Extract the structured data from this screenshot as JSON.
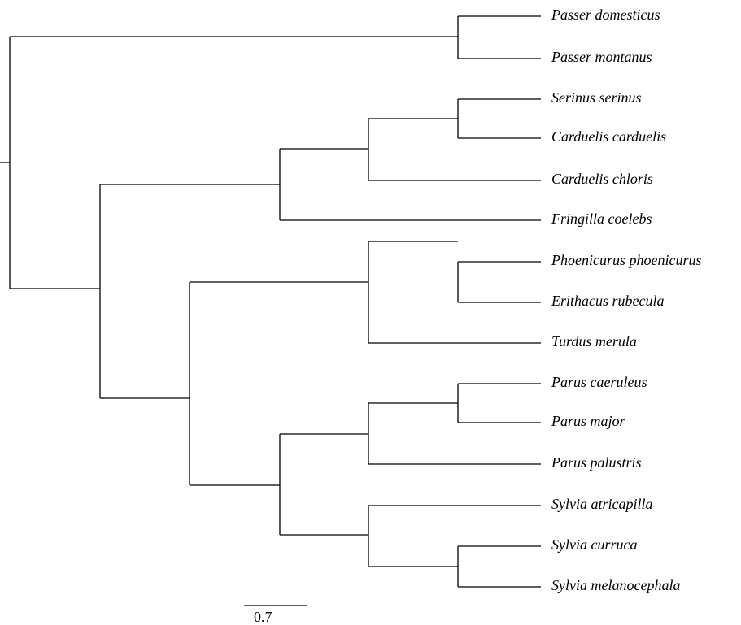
{
  "tree": {
    "leaves": [
      "Passer domesticus",
      "Passer montanus",
      "Serinus serinus",
      "Carduelis carduelis",
      "Carduelis chloris",
      "Fringilla coelebs",
      "Phoenicurus phoenicurus",
      "Erithacus rubecula",
      "Turdus merula",
      "Parus caeruleus",
      "Parus major",
      "Parus palustris",
      "Sylvia atricapilla",
      "Sylvia curruca",
      "Sylvia melanocephala"
    ],
    "scale_bar": "0.7"
  }
}
